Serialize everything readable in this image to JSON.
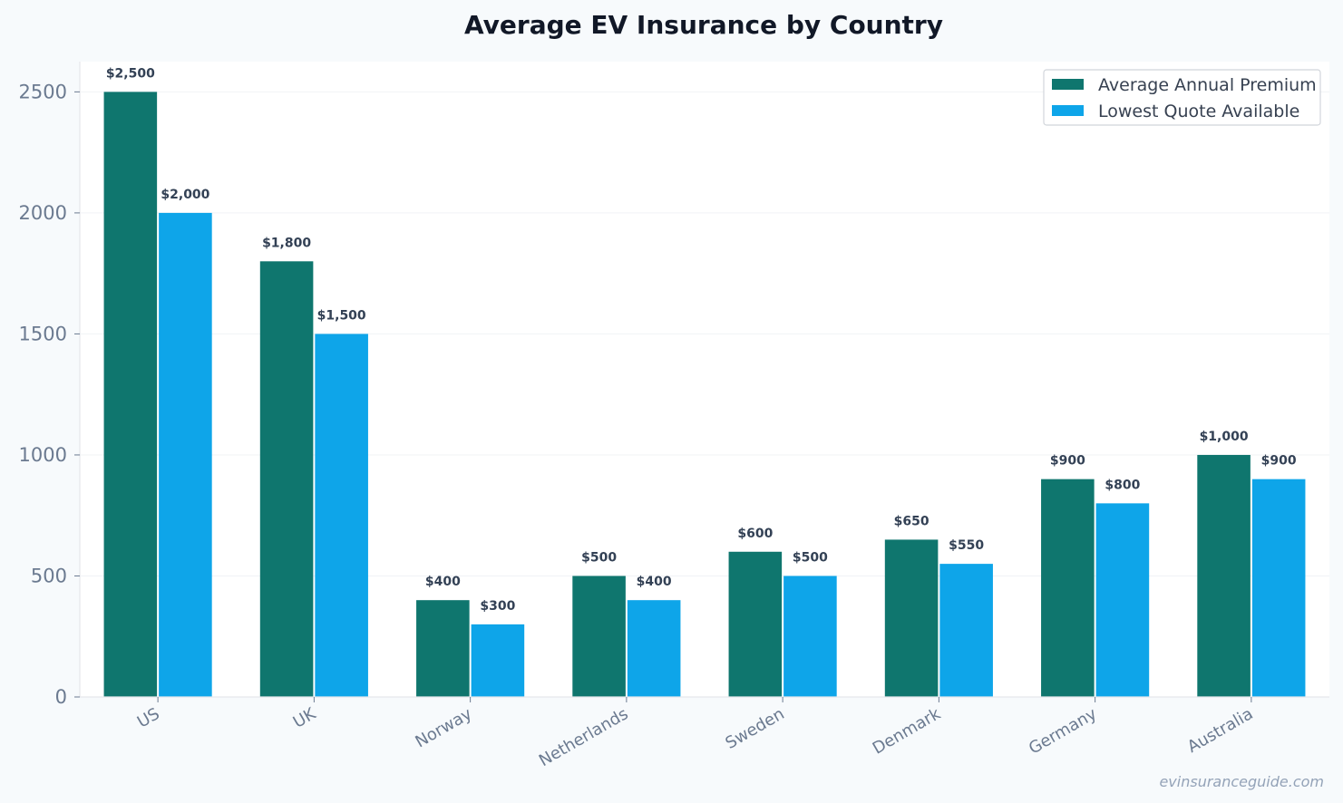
{
  "chart_data": {
    "type": "bar",
    "title": "Average EV Insurance by Country",
    "xlabel": "",
    "ylabel": "",
    "categories": [
      "US",
      "UK",
      "Norway",
      "Netherlands",
      "Sweden",
      "Denmark",
      "Germany",
      "Australia"
    ],
    "series": [
      {
        "name": "Average Annual Premium",
        "color": "#0f766e",
        "values": [
          2500,
          1800,
          400,
          500,
          600,
          650,
          900,
          1000
        ],
        "labels": [
          "$2,500",
          "$1,800",
          "$400",
          "$500",
          "$600",
          "$650",
          "$900",
          "$1,000"
        ]
      },
      {
        "name": "Lowest Quote Available",
        "color": "#0ea5e9",
        "values": [
          2000,
          1500,
          300,
          400,
          500,
          550,
          800,
          900
        ],
        "labels": [
          "$2,000",
          "$1,500",
          "$300",
          "$400",
          "$500",
          "$550",
          "$800",
          "$900"
        ]
      }
    ],
    "ylim": [
      0,
      2625
    ],
    "yticks": [
      "0",
      "500",
      "1000",
      "1500",
      "2000",
      "2500"
    ],
    "grid": true,
    "legend": "top-right"
  },
  "watermark": "evinsuranceguide.com"
}
